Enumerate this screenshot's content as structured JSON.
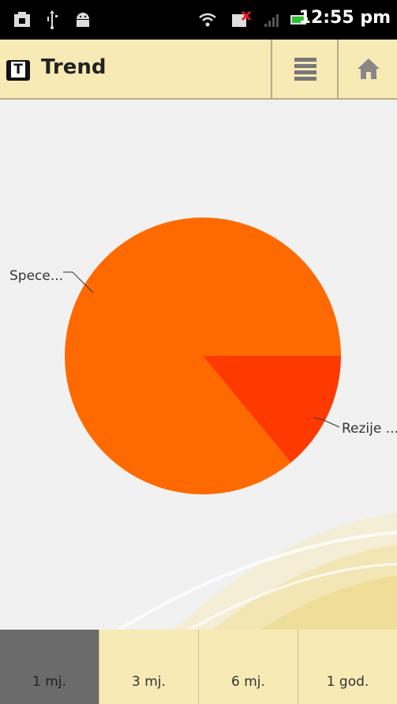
{
  "status_bar": {
    "time": "12:55 pm",
    "icons": [
      "media-icon",
      "usb-icon",
      "android-debug-icon",
      "wifi-icon",
      "notification-error-icon",
      "signal-icon",
      "battery-icon"
    ]
  },
  "action_bar": {
    "title": "Trend",
    "app_icon_letter": "T",
    "icons": [
      "list-icon",
      "home-icon"
    ]
  },
  "chart_data": {
    "type": "pie",
    "slices": [
      {
        "label": "Spece...",
        "value": 86,
        "color": "#ff6a00"
      },
      {
        "label": "Rezije ...",
        "value": 14,
        "color": "#ff3a00"
      }
    ]
  },
  "tabs": [
    {
      "label": "1 mj.",
      "active": true
    },
    {
      "label": "3 mj.",
      "active": false
    },
    {
      "label": "6 mj.",
      "active": false
    },
    {
      "label": "1 god.",
      "active": false
    }
  ]
}
